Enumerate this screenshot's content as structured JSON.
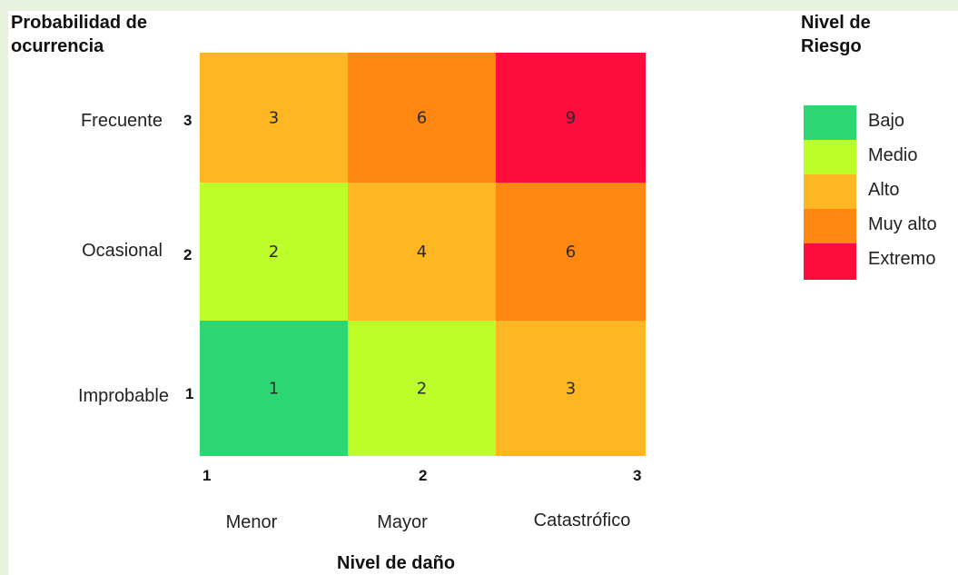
{
  "chart_data": {
    "type": "heatmap",
    "ytitle_line1": "Probabilidad de",
    "ytitle_line2": "ocurrencia",
    "xlabel": "Nivel de daño",
    "legend_title_line1": "Nivel de",
    "legend_title_line2": "Riesgo",
    "legend_placement": "right",
    "x_ticks": [
      "1",
      "2",
      "3"
    ],
    "x_categories": [
      "Menor",
      "Mayor",
      "Catastrófico"
    ],
    "y_ticks": [
      "1",
      "2",
      "3"
    ],
    "y_categories": [
      "Improbable",
      "Ocasional",
      "Frecuente"
    ],
    "cells": [
      {
        "x": 1,
        "y": 3,
        "value": 3,
        "level": "Alto"
      },
      {
        "x": 2,
        "y": 3,
        "value": 6,
        "level": "Muy alto"
      },
      {
        "x": 3,
        "y": 3,
        "value": 9,
        "level": "Extremo"
      },
      {
        "x": 1,
        "y": 2,
        "value": 2,
        "level": "Medio"
      },
      {
        "x": 2,
        "y": 2,
        "value": 4,
        "level": "Alto"
      },
      {
        "x": 3,
        "y": 2,
        "value": 6,
        "level": "Muy alto"
      },
      {
        "x": 1,
        "y": 1,
        "value": 1,
        "level": "Bajo"
      },
      {
        "x": 2,
        "y": 1,
        "value": 2,
        "level": "Medio"
      },
      {
        "x": 3,
        "y": 1,
        "value": 3,
        "level": "Alto"
      }
    ],
    "legend": [
      {
        "label": "Bajo",
        "color": "#2ed573"
      },
      {
        "label": "Medio",
        "color": "#bdfe2a"
      },
      {
        "label": "Alto",
        "color": "#feb623"
      },
      {
        "label": "Muy alto",
        "color": "#ff8712"
      },
      {
        "label": "Extremo",
        "color": "#ff0c3e"
      }
    ]
  }
}
